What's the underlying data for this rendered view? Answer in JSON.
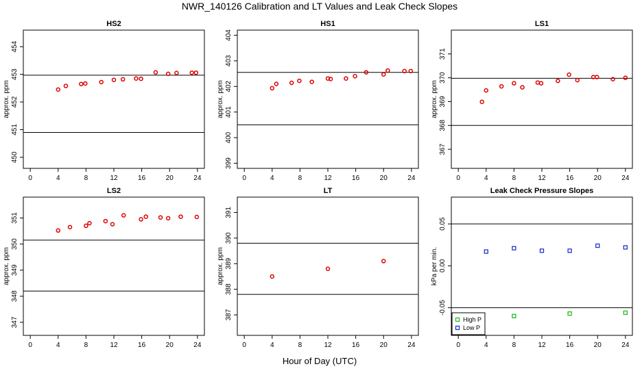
{
  "title": "NWR_140126  Calibration and LT Values and Leak Check Slopes",
  "xlabel": "Hour of Day (UTC)",
  "colors": {
    "cal": "#dd0000",
    "high_p": "#22bb22",
    "low_p": "#2233cc",
    "frame": "#000000"
  },
  "chart_data": [
    {
      "type": "scatter",
      "title": "HS2",
      "ylabel": "approx. ppm",
      "xlim": [
        -1,
        25
      ],
      "xticks": [
        0,
        4,
        8,
        12,
        16,
        20,
        24
      ],
      "ylim": [
        449.6,
        454.6
      ],
      "yticks": [
        "450",
        "451",
        "452",
        "453",
        "454"
      ],
      "hlines": [
        452.97,
        450.9
      ],
      "series": [
        {
          "name": "HS2",
          "color": "#dd0000",
          "x": [
            4.0,
            5.1,
            7.3,
            7.9,
            10.2,
            12.0,
            13.3,
            15.2,
            15.9,
            18.0,
            19.8,
            21.0,
            23.2,
            23.8
          ],
          "y": [
            452.45,
            452.58,
            452.65,
            452.67,
            452.72,
            452.8,
            452.82,
            452.85,
            452.84,
            453.07,
            453.02,
            453.05,
            453.06,
            453.06
          ]
        }
      ]
    },
    {
      "type": "scatter",
      "title": "HS1",
      "ylabel": "approx. ppm",
      "xlim": [
        -1,
        25
      ],
      "xticks": [
        0,
        4,
        8,
        12,
        16,
        20,
        24
      ],
      "ylim": [
        398.8,
        404.2
      ],
      "yticks": [
        "399",
        "400",
        "401",
        "402",
        "403",
        "404"
      ],
      "hlines": [
        402.55,
        400.5
      ],
      "series": [
        {
          "name": "HS1",
          "color": "#dd0000",
          "x": [
            4.0,
            4.6,
            6.8,
            7.9,
            9.7,
            12.0,
            12.4,
            14.6,
            15.9,
            17.5,
            20.0,
            20.6,
            23.0,
            23.9
          ],
          "y": [
            401.93,
            402.1,
            402.14,
            402.22,
            402.18,
            402.31,
            402.29,
            402.31,
            402.4,
            402.55,
            402.47,
            402.62,
            402.6,
            402.6
          ]
        }
      ]
    },
    {
      "type": "scatter",
      "title": "LS1",
      "ylabel": "approx. ppm",
      "xlim": [
        -1,
        25
      ],
      "xticks": [
        0,
        4,
        8,
        12,
        16,
        20,
        24
      ],
      "ylim": [
        366.2,
        372.0
      ],
      "yticks": [
        "367",
        "368",
        "369",
        "370",
        "371"
      ],
      "hlines": [
        369.98,
        368.0
      ],
      "series": [
        {
          "name": "LS1",
          "color": "#dd0000",
          "x": [
            3.4,
            4.0,
            6.2,
            8.0,
            9.2,
            11.4,
            11.9,
            14.3,
            15.9,
            17.1,
            19.4,
            19.9,
            22.2,
            24.0
          ],
          "y": [
            368.99,
            369.47,
            369.64,
            369.77,
            369.6,
            369.8,
            369.77,
            369.87,
            370.13,
            369.9,
            370.03,
            370.03,
            369.94,
            370.0
          ]
        }
      ]
    },
    {
      "type": "scatter",
      "title": "LS2",
      "ylabel": "approx. ppm",
      "xlim": [
        -1,
        25
      ],
      "xticks": [
        0,
        4,
        8,
        12,
        16,
        20,
        24
      ],
      "ylim": [
        346.5,
        351.8
      ],
      "yticks": [
        "347",
        "348",
        "349",
        "350",
        "351"
      ],
      "hlines": [
        350.15,
        348.2
      ],
      "series": [
        {
          "name": "LS2",
          "color": "#dd0000",
          "x": [
            4.0,
            5.7,
            8.0,
            8.5,
            10.8,
            11.8,
            13.4,
            15.9,
            16.6,
            18.7,
            19.8,
            21.6,
            23.9
          ],
          "y": [
            350.52,
            350.65,
            350.7,
            350.8,
            350.88,
            350.76,
            351.1,
            350.95,
            351.05,
            351.02,
            350.99,
            351.05,
            351.04
          ]
        }
      ]
    },
    {
      "type": "scatter",
      "title": "LT",
      "ylabel": "approx. ppm",
      "xlim": [
        -1,
        25
      ],
      "xticks": [
        0,
        4,
        8,
        12,
        16,
        20,
        24
      ],
      "ylim": [
        386.2,
        391.6
      ],
      "yticks": [
        "387",
        "388",
        "389",
        "390",
        "391"
      ],
      "hlines": [
        389.8,
        387.8
      ],
      "series": [
        {
          "name": "LT",
          "color": "#dd0000",
          "x": [
            4.0,
            12.0,
            20.0
          ],
          "y": [
            388.5,
            388.8,
            389.1
          ]
        }
      ]
    },
    {
      "type": "scatter",
      "title": "Leak Check Pressure Slopes",
      "ylabel": "kPa per min.",
      "xlim": [
        -1,
        25
      ],
      "xticks": [
        0,
        4,
        8,
        12,
        16,
        20,
        24
      ],
      "ylim": [
        -0.083,
        0.082
      ],
      "yticks": [
        "-0.05",
        "0.00",
        "0.05"
      ],
      "ytick_values": [
        -0.05,
        0.0,
        0.05
      ],
      "hlines": [
        0.05,
        -0.05
      ],
      "legend": {
        "position": "bottom-left",
        "entries": [
          "High P",
          "Low P"
        ]
      },
      "series": [
        {
          "name": "High P",
          "color": "#22bb22",
          "x": [
            8.0,
            16.0,
            24.0
          ],
          "y": [
            -0.06,
            -0.057,
            -0.056
          ]
        },
        {
          "name": "Low P",
          "color": "#2233cc",
          "x": [
            4.0,
            8.0,
            12.0,
            16.0,
            20.0,
            24.0
          ],
          "y": [
            0.017,
            0.021,
            0.018,
            0.018,
            0.024,
            0.022
          ]
        }
      ]
    }
  ]
}
